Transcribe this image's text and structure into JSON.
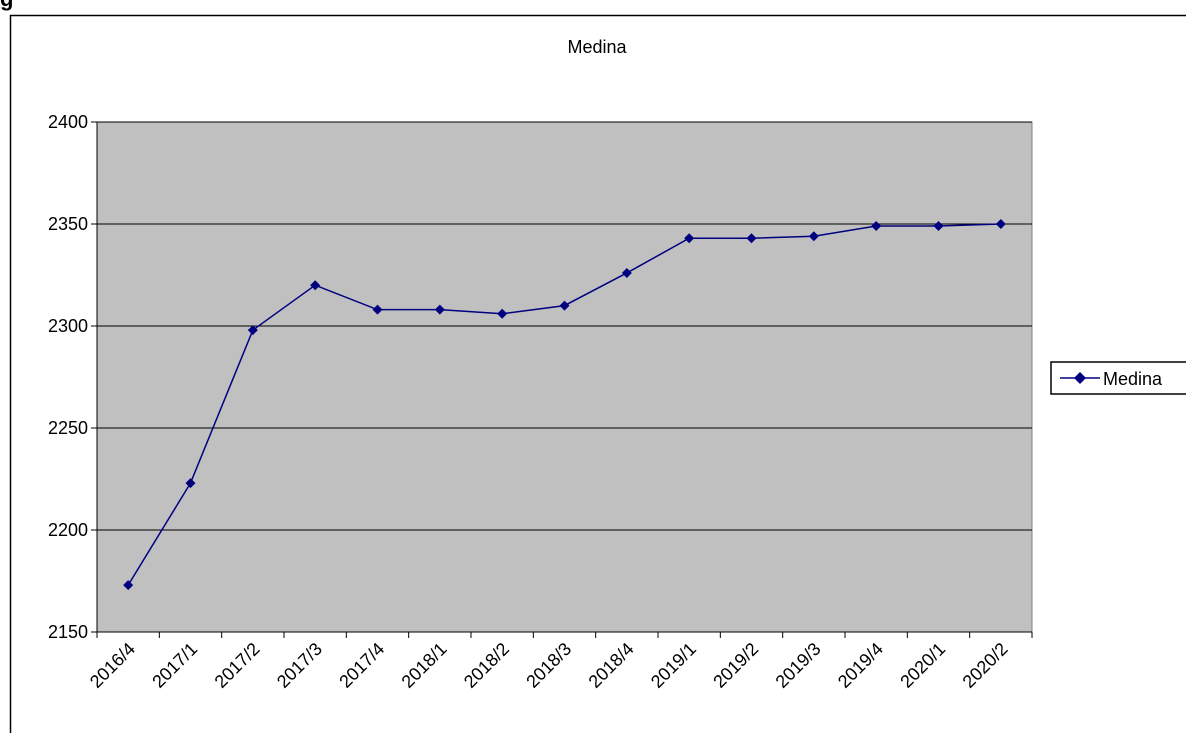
{
  "page": {
    "heading_fragment": "g"
  },
  "chart_data": {
    "type": "line",
    "title": "Medina",
    "xlabel": "",
    "ylabel": "",
    "categories": [
      "2016/4",
      "2017/1",
      "2017/2",
      "2017/3",
      "2017/4",
      "2018/1",
      "2018/2",
      "2018/3",
      "2018/4",
      "2019/1",
      "2019/2",
      "2019/3",
      "2019/4",
      "2020/1",
      "2020/2"
    ],
    "series": [
      {
        "name": "Medina",
        "color": "#000080",
        "marker": "diamond",
        "values": [
          2173,
          2223,
          2298,
          2320,
          2308,
          2308,
          2306,
          2310,
          2326,
          2343,
          2343,
          2344,
          2349,
          2349,
          2350
        ]
      }
    ],
    "ylim": [
      2150,
      2400
    ],
    "yticks": [
      2150,
      2200,
      2250,
      2300,
      2350,
      2400
    ],
    "grid": true,
    "plot_background": "#c0c0c0",
    "legend_position": "right"
  }
}
